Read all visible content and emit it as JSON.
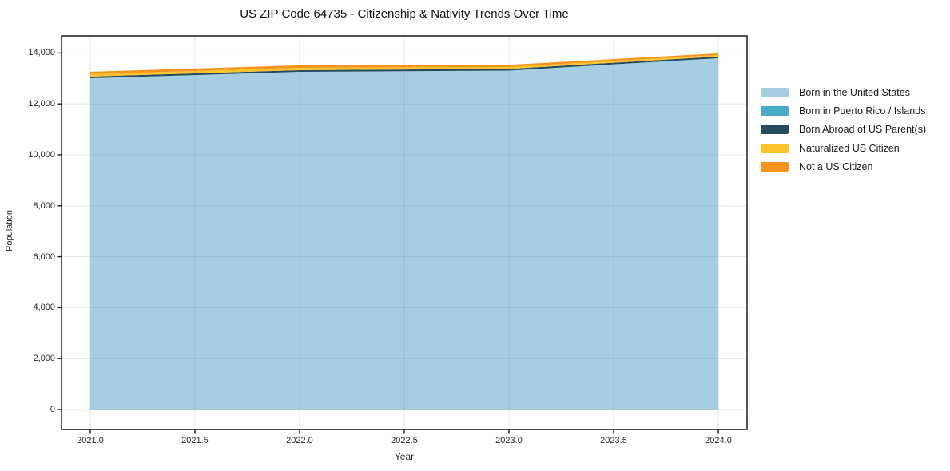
{
  "figure": {
    "background_color": "#ffffff",
    "spine_color": "#1a1a1a",
    "grid_color": "#8a8a8a",
    "text_color": "#262626"
  },
  "chart_data": {
    "type": "area",
    "title": "US ZIP Code 64735 - Citizenship & Nativity Trends Over Time",
    "xlabel": "Year",
    "ylabel": "Population",
    "x": [
      2021,
      2022,
      2023,
      2024
    ],
    "series": [
      {
        "name": "Born in the United States",
        "color": "#a6cee3",
        "values": [
          13010,
          13260,
          13310,
          13795
        ]
      },
      {
        "name": "Born in Puerto Rico / Islands",
        "color": "#4babc7",
        "values": [
          0,
          0,
          0,
          0
        ]
      },
      {
        "name": "Born Abroad of US Parent(s)",
        "color": "#264b5d",
        "values": [
          65,
          65,
          65,
          65
        ]
      },
      {
        "name": "Naturalized US Citizen",
        "color": "#fdc32d",
        "values": [
          95,
          95,
          80,
          65
        ]
      },
      {
        "name": "Not a US Citizen",
        "color": "#f7941e",
        "values": [
          95,
          95,
          80,
          60
        ]
      }
    ],
    "stacked": true,
    "x_ticks": [
      "2021.0",
      "2021.5",
      "2022.0",
      "2022.5",
      "2023.0",
      "2023.5",
      "2024.0"
    ],
    "y_ticks": [
      "0",
      "2,000",
      "4,000",
      "6,000",
      "8,000",
      "10,000",
      "12,000",
      "14,000"
    ],
    "xlim": [
      2020.8626,
      2024.1374
    ],
    "ylim": [
      -784,
      14672
    ],
    "grid": true,
    "legend_position": "right"
  }
}
